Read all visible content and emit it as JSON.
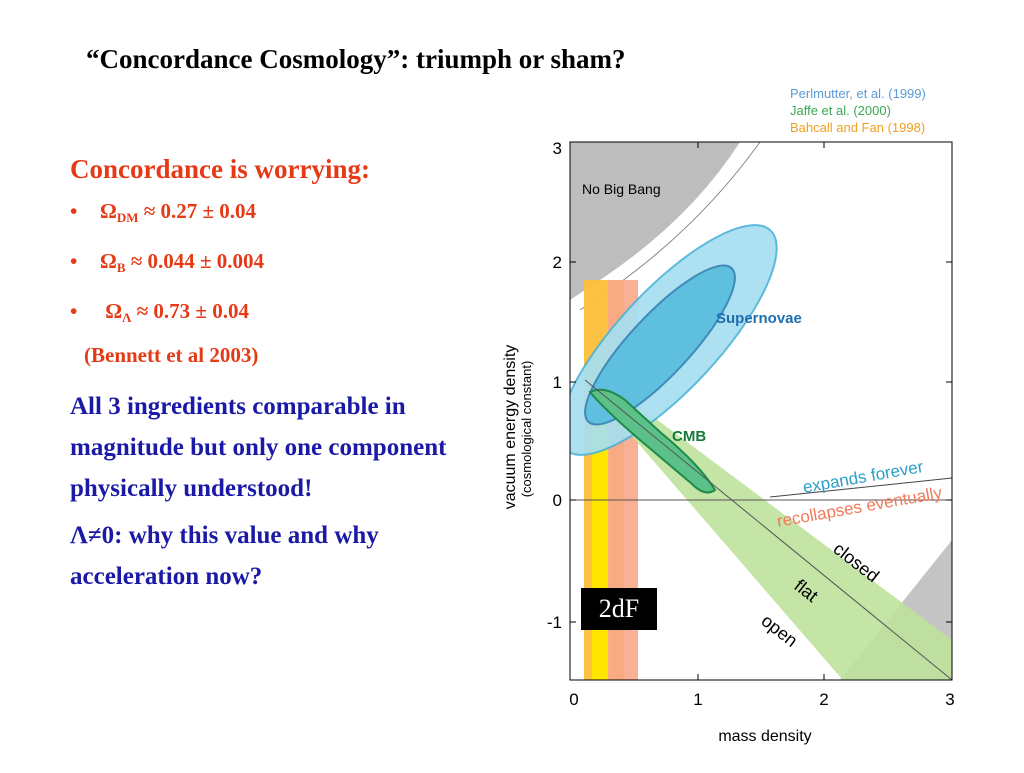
{
  "slide": {
    "title": "“Concordance Cosmology”: triumph or sham?",
    "heading": "Concordance is worrying:",
    "bullets": [
      {
        "symbol": "Ω",
        "sub": "DM",
        "text": " ≈ 0.27 ± 0.04"
      },
      {
        "symbol": "Ω",
        "sub": "B",
        "text": "  ≈ 0.044  ± 0.004"
      },
      {
        "symbol": "Ω",
        "sub": "Λ",
        "text": "  ≈ 0.73  ± 0.04"
      }
    ],
    "bullet_marker": "•",
    "reference": "(Bennett et al 2003)",
    "paragraph1": "All 3 ingredients comparable in magnitude but only one component physically understood!",
    "paragraph2": "Λ≠0: why this value and why acceleration now?"
  },
  "legend": [
    {
      "text": "Perlmutter, et al. (1999)",
      "color": "#5b9bd5"
    },
    {
      "text": "Jaffe  et al.  (2000)",
      "color": "#39a852"
    },
    {
      "text": "Bahcall and Fan (1998)",
      "color": "#f0a020"
    }
  ],
  "chart_labels": {
    "no_big_bang": "No Big Bang",
    "supernovae": "Supernovae",
    "cmb": "CMB",
    "expands_forever": "expands forever",
    "recollapses": "recollapses eventually",
    "closed": "closed",
    "flat": "flat",
    "open": "open",
    "badge": "2dF"
  },
  "chart_data": {
    "type": "scatter",
    "xlabel": "mass density",
    "ylabel": "vacuum energy density",
    "ylabel2": "(cosmological constant)",
    "xlim": [
      0,
      3
    ],
    "ylim": [
      -1.5,
      3
    ],
    "xticks": [
      "0",
      "1",
      "2",
      "3"
    ],
    "yticks": [
      "3",
      "2",
      "1",
      "0",
      "-1"
    ]
  },
  "colors": {
    "title": "#000000",
    "red": "#e63a17",
    "blue": "#1a1aa6"
  }
}
